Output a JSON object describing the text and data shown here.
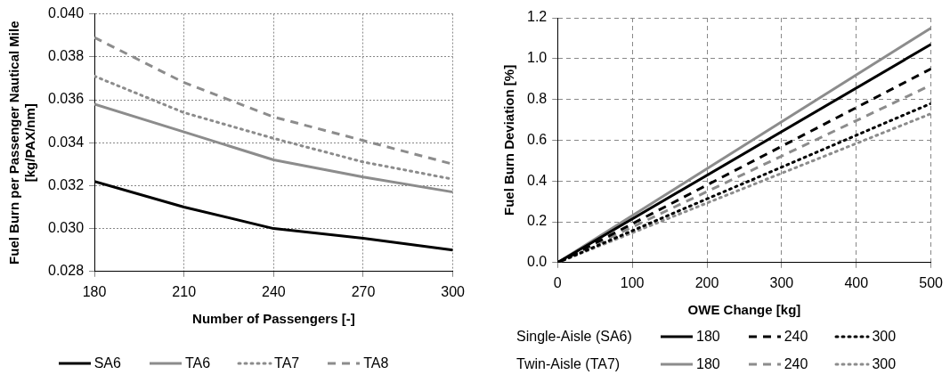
{
  "chart_data": [
    {
      "type": "line",
      "xlabel": "Number of Passengers [-]",
      "ylabel": "Fuel Burn per Passenger Nautical Mile [kg/PAX/nm]",
      "x": [
        180,
        210,
        240,
        270,
        300
      ],
      "xlim": [
        180,
        300
      ],
      "xticks": [
        180,
        210,
        240,
        270,
        300
      ],
      "ylim": [
        0.028,
        0.04
      ],
      "yticks": [
        {
          "value": 0.028,
          "label": "0.028"
        },
        {
          "value": 0.03,
          "label": "0.030"
        },
        {
          "value": 0.032,
          "label": "0.032"
        },
        {
          "value": 0.034,
          "label": "0.034"
        },
        {
          "value": 0.036,
          "label": "0.036"
        },
        {
          "value": 0.038,
          "label": "0.038"
        },
        {
          "value": 0.04,
          "label": "0.040"
        }
      ],
      "grid": true,
      "legend": "bottom",
      "marker": "none",
      "series": [
        {
          "name": "SA6",
          "color": "#000000",
          "line_style": "solid",
          "values": [
            0.0322,
            0.031,
            0.03,
            0.02955,
            0.029
          ]
        },
        {
          "name": "TA6",
          "color": "#8c8c8c",
          "line_style": "solid",
          "values": [
            0.0358,
            0.0345,
            0.0332,
            0.0324,
            0.0317
          ]
        },
        {
          "name": "TA7",
          "color": "#8c8c8c",
          "line_style": "dotted",
          "values": [
            0.0371,
            0.0354,
            0.0342,
            0.0331,
            0.0323
          ]
        },
        {
          "name": "TA8",
          "color": "#8c8c8c",
          "line_style": "dashed",
          "values": [
            0.0389,
            0.0368,
            0.0352,
            0.0341,
            0.033
          ]
        }
      ]
    },
    {
      "type": "line",
      "xlabel": "OWE Change [kg]",
      "ylabel": "Fuel Burn Deviation [%]",
      "x": [
        0,
        500
      ],
      "xlim": [
        0,
        500
      ],
      "xticks": [
        0,
        100,
        200,
        300,
        400,
        500
      ],
      "ylim": [
        0,
        1.2
      ],
      "yticks": [
        {
          "value": 0,
          "label": "0.0"
        },
        0.2,
        0.4,
        0.6,
        0.8,
        {
          "value": 1,
          "label": "1.0"
        },
        1.2
      ],
      "grid": true,
      "legend": "bottom",
      "marker": "none",
      "annotations": [
        "Single-Aisle (SA6)",
        "Twin-Aisle (TA7)"
      ],
      "series": [
        {
          "name": "180",
          "color": "#000000",
          "line_style": "solid",
          "values": [
            0,
            1.07
          ]
        },
        {
          "name": "240",
          "color": "#000000",
          "line_style": "dashed",
          "values": [
            0,
            0.95
          ]
        },
        {
          "name": "300",
          "color": "#000000",
          "line_style": "dotted",
          "values": [
            0,
            0.78
          ]
        },
        {
          "name": "180",
          "color": "#8c8c8c",
          "line_style": "solid",
          "values": [
            0,
            1.15
          ]
        },
        {
          "name": "240",
          "color": "#8c8c8c",
          "line_style": "dashed",
          "values": [
            0,
            0.87
          ]
        },
        {
          "name": "300",
          "color": "#8c8c8c",
          "line_style": "dotted",
          "values": [
            0,
            0.73
          ]
        }
      ]
    }
  ]
}
